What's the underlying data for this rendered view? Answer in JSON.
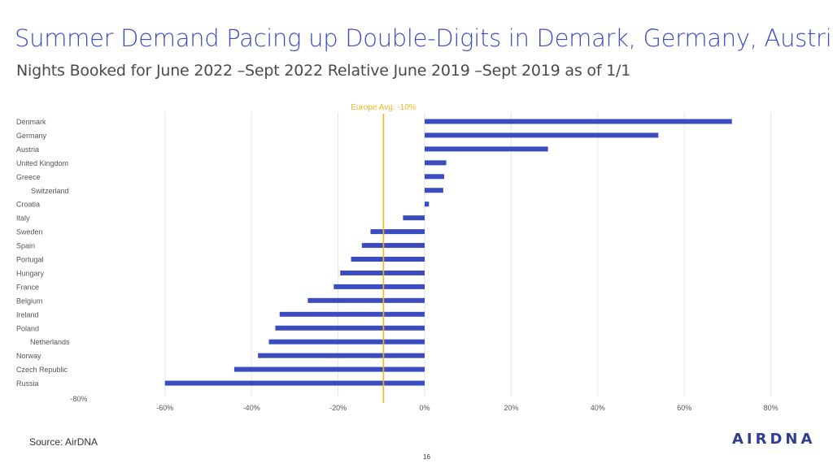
{
  "header": {
    "title": "Summer Demand Pacing up Double-Digits in Demark, Germany, Austria",
    "subtitle": "Nights Booked for June 2022 –Sept 2022 Relative June 2019 –Sept 2019 as of 1/1"
  },
  "footer": {
    "source": "Source: AirDNA",
    "page_number": "16",
    "logo_text": "AIRDNA"
  },
  "colors": {
    "bar": "#3b4cc0",
    "reference_line": "#f2b51f",
    "grid": "#e6e6e6"
  },
  "chart_data": {
    "type": "bar",
    "orientation": "horizontal",
    "title": "Summer Demand Pacing up Double-Digits in Demark, Germany, Austria",
    "subtitle": "Nights Booked for June 2022 –Sept 2022 Relative June 2019 –Sept 2019 as of 1/1",
    "categories": [
      "Denmark",
      "Germany",
      "Austria",
      "United Kingdom",
      "Greece",
      "Switzerland",
      "Croatia",
      "Italy",
      "Sweden",
      "Spain",
      "Portugal",
      "Hungary",
      "France",
      "Belgium",
      "Ireland",
      "Poland",
      "Netherlands",
      "Norway",
      "Czech Republic",
      "Russia"
    ],
    "values": [
      71,
      54,
      28.5,
      5,
      4.5,
      4.3,
      1,
      -5,
      -12.5,
      -14.5,
      -17,
      -19.5,
      -21,
      -27,
      -33.5,
      -34.5,
      -36,
      -38.5,
      -44,
      -60
    ],
    "xlim": [
      -60,
      80
    ],
    "xticks": [
      -60,
      -40,
      -20,
      0,
      20,
      40,
      60,
      80
    ],
    "xtick_labels": [
      "-60%",
      "-40%",
      "-20%",
      "0%",
      "20%",
      "40%",
      "60%",
      "80%"
    ],
    "extra_axis_label": "-80%",
    "reference_line": {
      "value": -9.5,
      "label": "Europe Avg. -10%"
    },
    "grid": true
  }
}
